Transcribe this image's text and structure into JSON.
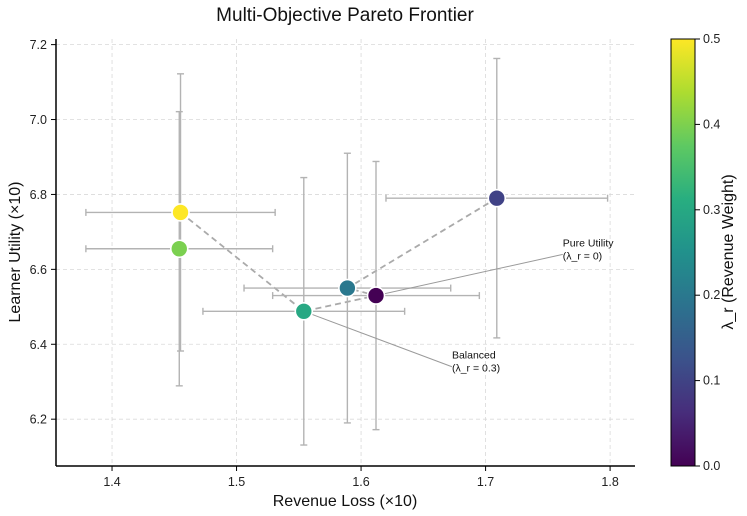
{
  "chart_data": {
    "type": "scatter",
    "title": "Multi-Objective Pareto Frontier",
    "xlabel": "Revenue Loss (×10)",
    "ylabel": "Learner Utility (×10)",
    "xlim": [
      1.355,
      1.82
    ],
    "ylim": [
      6.075,
      7.215
    ],
    "xticks": [
      "1.4",
      "1.5",
      "1.6",
      "1.7",
      "1.8"
    ],
    "yticks": [
      "6.2",
      "6.4",
      "6.6",
      "6.8",
      "7.0",
      "7.2"
    ],
    "grid": true,
    "colorbar": {
      "label": "λ_r (Revenue Weight)",
      "range": [
        0.0,
        0.5
      ],
      "ticks": [
        "0.0",
        "0.1",
        "0.2",
        "0.3",
        "0.4",
        "0.5"
      ],
      "colormap": "viridis"
    },
    "points": [
      {
        "x": 1.612,
        "y": 6.53,
        "xerr": 0.083,
        "yerr": 0.358,
        "lambda": 0.0
      },
      {
        "x": 1.709,
        "y": 6.79,
        "xerr": 0.089,
        "yerr": 0.373,
        "lambda": 0.1
      },
      {
        "x": 1.589,
        "y": 6.55,
        "xerr": 0.083,
        "yerr": 0.36,
        "lambda": 0.2
      },
      {
        "x": 1.554,
        "y": 6.488,
        "xerr": 0.081,
        "yerr": 0.357,
        "lambda": 0.3
      },
      {
        "x": 1.454,
        "y": 6.655,
        "xerr": 0.075,
        "yerr": 0.366,
        "lambda": 0.4
      },
      {
        "x": 1.455,
        "y": 6.752,
        "xerr": 0.076,
        "yerr": 0.37,
        "lambda": 0.5
      }
    ],
    "frontier_order": [
      5,
      3,
      0,
      2,
      1
    ],
    "annotations": [
      {
        "text_line1": "Pure Utility",
        "text_line2": "(λ_r = 0)",
        "text_x": 1.762,
        "text_y": 6.64,
        "target_x": 1.612,
        "target_y": 6.53
      },
      {
        "text_line1": "Balanced",
        "text_line2": "(λ_r = 0.3)",
        "text_x": 1.673,
        "text_y": 6.34,
        "target_x": 1.554,
        "target_y": 6.488
      }
    ]
  }
}
